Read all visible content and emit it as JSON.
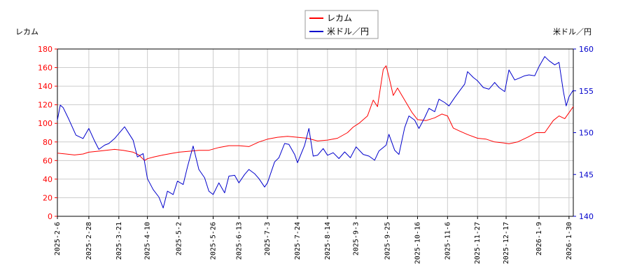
{
  "chart_data": {
    "type": "line",
    "legend_position": "top-center",
    "grid": true,
    "y_left": {
      "label": "レカム",
      "ylim": [
        0,
        180
      ],
      "ticks": [
        0,
        20,
        40,
        60,
        80,
        100,
        120,
        140,
        160,
        180
      ],
      "color": "#ff0000"
    },
    "y_right": {
      "label": "米ドル／円",
      "ylim": [
        140,
        160
      ],
      "ticks": [
        140,
        145,
        150,
        155,
        160
      ],
      "color": "#0000cc"
    },
    "x": {
      "start": "2025-02-06",
      "end": "2026-02-02",
      "tick_labels": [
        "2025-2-6",
        "2025-2-28",
        "2025-3-21",
        "2025-4-10",
        "2025-5-2",
        "2025-5-26",
        "2025-6-13",
        "2025-7-3",
        "2025-7-24",
        "2025-8-14",
        "2025-9-3",
        "2025-9-25",
        "2025-10-16",
        "2025-11-6",
        "2025-11-27",
        "2025-12-17",
        "2026-1-9",
        "2026-1-30"
      ]
    },
    "series": [
      {
        "name": "レカム",
        "axis": "left",
        "color": "#ff0000",
        "points": [
          [
            "2025-02-06",
            68
          ],
          [
            "2025-02-12",
            67
          ],
          [
            "2025-02-18",
            66
          ],
          [
            "2025-02-24",
            67
          ],
          [
            "2025-02-28",
            69
          ],
          [
            "2025-03-06",
            70
          ],
          [
            "2025-03-12",
            71
          ],
          [
            "2025-03-18",
            72
          ],
          [
            "2025-03-24",
            71
          ],
          [
            "2025-03-31",
            69
          ],
          [
            "2025-04-04",
            66
          ],
          [
            "2025-04-08",
            60
          ],
          [
            "2025-04-10",
            62
          ],
          [
            "2025-04-15",
            64
          ],
          [
            "2025-04-21",
            66
          ],
          [
            "2025-04-28",
            68
          ],
          [
            "2025-05-02",
            69
          ],
          [
            "2025-05-09",
            70
          ],
          [
            "2025-05-16",
            71
          ],
          [
            "2025-05-23",
            71
          ],
          [
            "2025-05-30",
            74
          ],
          [
            "2025-06-06",
            76
          ],
          [
            "2025-06-13",
            76
          ],
          [
            "2025-06-20",
            75
          ],
          [
            "2025-06-27",
            80
          ],
          [
            "2025-07-03",
            83
          ],
          [
            "2025-07-10",
            85
          ],
          [
            "2025-07-17",
            86
          ],
          [
            "2025-07-24",
            85
          ],
          [
            "2025-07-31",
            84
          ],
          [
            "2025-08-07",
            81
          ],
          [
            "2025-08-14",
            82
          ],
          [
            "2025-08-21",
            84
          ],
          [
            "2025-08-28",
            90
          ],
          [
            "2025-09-01",
            96
          ],
          [
            "2025-09-05",
            100
          ],
          [
            "2025-09-11",
            108
          ],
          [
            "2025-09-15",
            125
          ],
          [
            "2025-09-18",
            118
          ],
          [
            "2025-09-22",
            158
          ],
          [
            "2025-09-24",
            162
          ],
          [
            "2025-09-26",
            150
          ],
          [
            "2025-09-29",
            130
          ],
          [
            "2025-10-02",
            138
          ],
          [
            "2025-10-07",
            125
          ],
          [
            "2025-10-12",
            112
          ],
          [
            "2025-10-16",
            104
          ],
          [
            "2025-10-22",
            103
          ],
          [
            "2025-10-28",
            106
          ],
          [
            "2025-11-02",
            110
          ],
          [
            "2025-11-06",
            108
          ],
          [
            "2025-11-10",
            95
          ],
          [
            "2025-11-14",
            92
          ],
          [
            "2025-11-20",
            88
          ],
          [
            "2025-11-27",
            84
          ],
          [
            "2025-12-03",
            83
          ],
          [
            "2025-12-09",
            80
          ],
          [
            "2025-12-15",
            79
          ],
          [
            "2025-12-19",
            78
          ],
          [
            "2025-12-25",
            80
          ],
          [
            "2026-01-01",
            85
          ],
          [
            "2026-01-07",
            90
          ],
          [
            "2026-01-13",
            90
          ],
          [
            "2026-01-19",
            103
          ],
          [
            "2026-01-23",
            108
          ],
          [
            "2026-01-27",
            105
          ],
          [
            "2026-02-02",
            118
          ]
        ]
      },
      {
        "name": "米ドル／円",
        "axis": "right",
        "color": "#0000cc",
        "points": [
          [
            "2025-02-06",
            151.5
          ],
          [
            "2025-02-08",
            153.3
          ],
          [
            "2025-02-10",
            153.0
          ],
          [
            "2025-02-14",
            151.6
          ],
          [
            "2025-02-19",
            149.7
          ],
          [
            "2025-02-24",
            149.3
          ],
          [
            "2025-02-28",
            150.5
          ],
          [
            "2025-03-04",
            149.0
          ],
          [
            "2025-03-07",
            148.0
          ],
          [
            "2025-03-11",
            148.5
          ],
          [
            "2025-03-14",
            148.7
          ],
          [
            "2025-03-18",
            149.3
          ],
          [
            "2025-03-21",
            149.9
          ],
          [
            "2025-03-25",
            150.7
          ],
          [
            "2025-03-28",
            149.9
          ],
          [
            "2025-03-31",
            149.1
          ],
          [
            "2025-04-03",
            147.1
          ],
          [
            "2025-04-07",
            147.5
          ],
          [
            "2025-04-10",
            144.5
          ],
          [
            "2025-04-14",
            143.2
          ],
          [
            "2025-04-18",
            142.3
          ],
          [
            "2025-04-21",
            141.0
          ],
          [
            "2025-04-24",
            143.0
          ],
          [
            "2025-04-28",
            142.6
          ],
          [
            "2025-05-01",
            144.2
          ],
          [
            "2025-05-05",
            143.8
          ],
          [
            "2025-05-08",
            145.9
          ],
          [
            "2025-05-12",
            148.4
          ],
          [
            "2025-05-16",
            145.6
          ],
          [
            "2025-05-20",
            144.6
          ],
          [
            "2025-05-23",
            143.0
          ],
          [
            "2025-05-26",
            142.6
          ],
          [
            "2025-05-30",
            144.0
          ],
          [
            "2025-06-03",
            142.8
          ],
          [
            "2025-06-06",
            144.8
          ],
          [
            "2025-06-10",
            144.9
          ],
          [
            "2025-06-13",
            144.0
          ],
          [
            "2025-06-17",
            145.0
          ],
          [
            "2025-06-20",
            145.6
          ],
          [
            "2025-06-24",
            145.1
          ],
          [
            "2025-06-27",
            144.5
          ],
          [
            "2025-07-01",
            143.5
          ],
          [
            "2025-07-03",
            144.0
          ],
          [
            "2025-07-08",
            146.5
          ],
          [
            "2025-07-11",
            147.0
          ],
          [
            "2025-07-15",
            148.7
          ],
          [
            "2025-07-18",
            148.6
          ],
          [
            "2025-07-22",
            147.4
          ],
          [
            "2025-07-24",
            146.4
          ],
          [
            "2025-07-29",
            148.5
          ],
          [
            "2025-08-01",
            150.5
          ],
          [
            "2025-08-04",
            147.2
          ],
          [
            "2025-08-07",
            147.3
          ],
          [
            "2025-08-11",
            148.1
          ],
          [
            "2025-08-14",
            147.3
          ],
          [
            "2025-08-18",
            147.6
          ],
          [
            "2025-08-22",
            146.9
          ],
          [
            "2025-08-26",
            147.7
          ],
          [
            "2025-08-30",
            147.0
          ],
          [
            "2025-09-03",
            148.3
          ],
          [
            "2025-09-08",
            147.4
          ],
          [
            "2025-09-12",
            147.2
          ],
          [
            "2025-09-16",
            146.7
          ],
          [
            "2025-09-19",
            147.8
          ],
          [
            "2025-09-24",
            148.5
          ],
          [
            "2025-09-26",
            149.8
          ],
          [
            "2025-09-30",
            147.9
          ],
          [
            "2025-10-03",
            147.4
          ],
          [
            "2025-10-07",
            150.6
          ],
          [
            "2025-10-10",
            152.0
          ],
          [
            "2025-10-14",
            151.5
          ],
          [
            "2025-10-17",
            150.5
          ],
          [
            "2025-10-21",
            151.8
          ],
          [
            "2025-10-24",
            152.9
          ],
          [
            "2025-10-28",
            152.5
          ],
          [
            "2025-10-31",
            154.0
          ],
          [
            "2025-11-04",
            153.6
          ],
          [
            "2025-11-07",
            153.2
          ],
          [
            "2025-11-11",
            154.2
          ],
          [
            "2025-11-14",
            154.9
          ],
          [
            "2025-11-18",
            155.8
          ],
          [
            "2025-11-20",
            157.3
          ],
          [
            "2025-11-24",
            156.6
          ],
          [
            "2025-11-27",
            156.2
          ],
          [
            "2025-12-01",
            155.4
          ],
          [
            "2025-12-05",
            155.2
          ],
          [
            "2025-12-09",
            156.0
          ],
          [
            "2025-12-12",
            155.4
          ],
          [
            "2025-12-16",
            154.9
          ],
          [
            "2025-12-19",
            157.5
          ],
          [
            "2025-12-23",
            156.3
          ],
          [
            "2025-12-26",
            156.5
          ],
          [
            "2025-12-30",
            156.8
          ],
          [
            "2026-01-02",
            156.9
          ],
          [
            "2026-01-06",
            156.8
          ],
          [
            "2026-01-09",
            157.9
          ],
          [
            "2026-01-13",
            159.1
          ],
          [
            "2026-01-16",
            158.6
          ],
          [
            "2026-01-20",
            158.1
          ],
          [
            "2026-01-23",
            158.4
          ],
          [
            "2026-01-26",
            155.0
          ],
          [
            "2026-01-28",
            153.2
          ],
          [
            "2026-01-30",
            154.3
          ],
          [
            "2026-02-02",
            155.1
          ]
        ]
      }
    ]
  }
}
